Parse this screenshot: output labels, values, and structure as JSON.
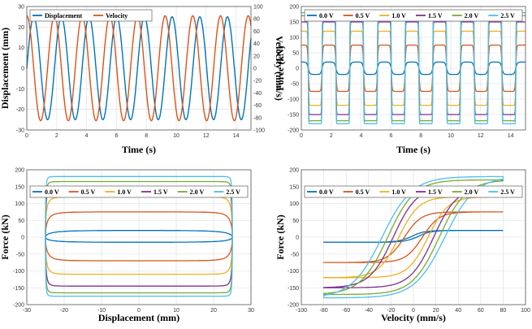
{
  "chart_data": [
    {
      "type": "line",
      "xlabel": "Time (s)",
      "ylabel": "Displacement (mm)",
      "y2label": "Velocity (mm/s)",
      "xlim": [
        0,
        15
      ],
      "xticks": [
        0,
        2,
        4,
        6,
        8,
        10,
        12,
        14
      ],
      "ylim": [
        -30,
        30
      ],
      "yticks": [
        -30,
        -20,
        -10,
        0,
        10,
        20,
        30
      ],
      "y2lim": [
        -100,
        100
      ],
      "y2ticks": [
        -100,
        -80,
        -60,
        -40,
        -20,
        0,
        20,
        40,
        60,
        80,
        100
      ],
      "frequency_hz": 0.54,
      "grid": true,
      "legend_position": "top-left",
      "series": [
        {
          "name": "Displacement",
          "axis": "left",
          "amplitude": 25,
          "phase": "sine",
          "color": "#0072BD"
        },
        {
          "name": "Velocity",
          "axis": "right",
          "amplitude": 85,
          "phase": "cosine",
          "color": "#D95319"
        }
      ]
    },
    {
      "type": "line",
      "xlabel": "Time (s)",
      "ylabel": "Force (kN)",
      "xlim": [
        0,
        15
      ],
      "xticks": [
        0,
        2,
        4,
        6,
        8,
        10,
        12,
        14
      ],
      "ylim": [
        -200,
        200
      ],
      "yticks": [
        -200,
        -150,
        -100,
        -50,
        0,
        50,
        100,
        150,
        200
      ],
      "grid": true,
      "legend_position": "top",
      "series": [
        {
          "name": "0.0 V",
          "peak_pos": 20,
          "peak_neg": -20,
          "color": "#0072BD"
        },
        {
          "name": "0.5 V",
          "peak_pos": 75,
          "peak_neg": -75,
          "color": "#D95319"
        },
        {
          "name": "1.0 V",
          "peak_pos": 120,
          "peak_neg": -120,
          "color": "#EDB120"
        },
        {
          "name": "1.5 V",
          "peak_pos": 150,
          "peak_neg": -150,
          "color": "#7E2F8E"
        },
        {
          "name": "2.0 V",
          "peak_pos": 170,
          "peak_neg": -170,
          "color": "#77AC30"
        },
        {
          "name": "2.5 V",
          "peak_pos": 180,
          "peak_neg": -180,
          "color": "#4DBEEE"
        }
      ]
    },
    {
      "type": "line",
      "xlabel": "Displacement (mm)",
      "ylabel": "Force (kN)",
      "xlim": [
        -30,
        30
      ],
      "xticks": [
        -30,
        -20,
        -10,
        0,
        10,
        20,
        30
      ],
      "ylim": [
        -200,
        200
      ],
      "yticks": [
        -200,
        -150,
        -100,
        -50,
        0,
        50,
        100,
        150,
        200
      ],
      "grid": true,
      "legend_position": "top",
      "series": [
        {
          "name": "0.0 V",
          "force_upper": 20,
          "force_lower": -15,
          "color": "#0072BD"
        },
        {
          "name": "0.5 V",
          "force_upper": 75,
          "force_lower": -70,
          "color": "#D95319"
        },
        {
          "name": "1.0 V",
          "force_upper": 120,
          "force_lower": -110,
          "color": "#EDB120"
        },
        {
          "name": "1.5 V",
          "force_upper": 150,
          "force_lower": -145,
          "color": "#7E2F8E"
        },
        {
          "name": "2.0 V",
          "force_upper": 165,
          "force_lower": -165,
          "color": "#77AC30"
        },
        {
          "name": "2.5 V",
          "force_upper": 180,
          "force_lower": -175,
          "color": "#4DBEEE"
        }
      ]
    },
    {
      "type": "line",
      "xlabel": "Velocity (mm/s)",
      "ylabel": "Force (kN)",
      "xlim": [
        -100,
        100
      ],
      "xticks": [
        -100,
        -80,
        -60,
        -40,
        -20,
        0,
        20,
        40,
        60,
        80,
        100
      ],
      "ylim": [
        -200,
        200
      ],
      "yticks": [
        -200,
        -150,
        -100,
        -50,
        0,
        50,
        100,
        150,
        200
      ],
      "grid": true,
      "legend_position": "top",
      "series": [
        {
          "name": "0.0 V",
          "force_min": -15,
          "force_max": 20,
          "color": "#0072BD"
        },
        {
          "name": "0.5 V",
          "force_min": -75,
          "force_max": 75,
          "color": "#D95319"
        },
        {
          "name": "1.0 V",
          "force_min": -120,
          "force_max": 120,
          "color": "#EDB120"
        },
        {
          "name": "1.5 V",
          "force_min": -150,
          "force_max": 150,
          "color": "#7E2F8E"
        },
        {
          "name": "2.0 V",
          "force_min": -170,
          "force_max": 170,
          "color": "#77AC30"
        },
        {
          "name": "2.5 V",
          "force_min": -180,
          "force_max": 180,
          "color": "#4DBEEE"
        }
      ]
    }
  ]
}
